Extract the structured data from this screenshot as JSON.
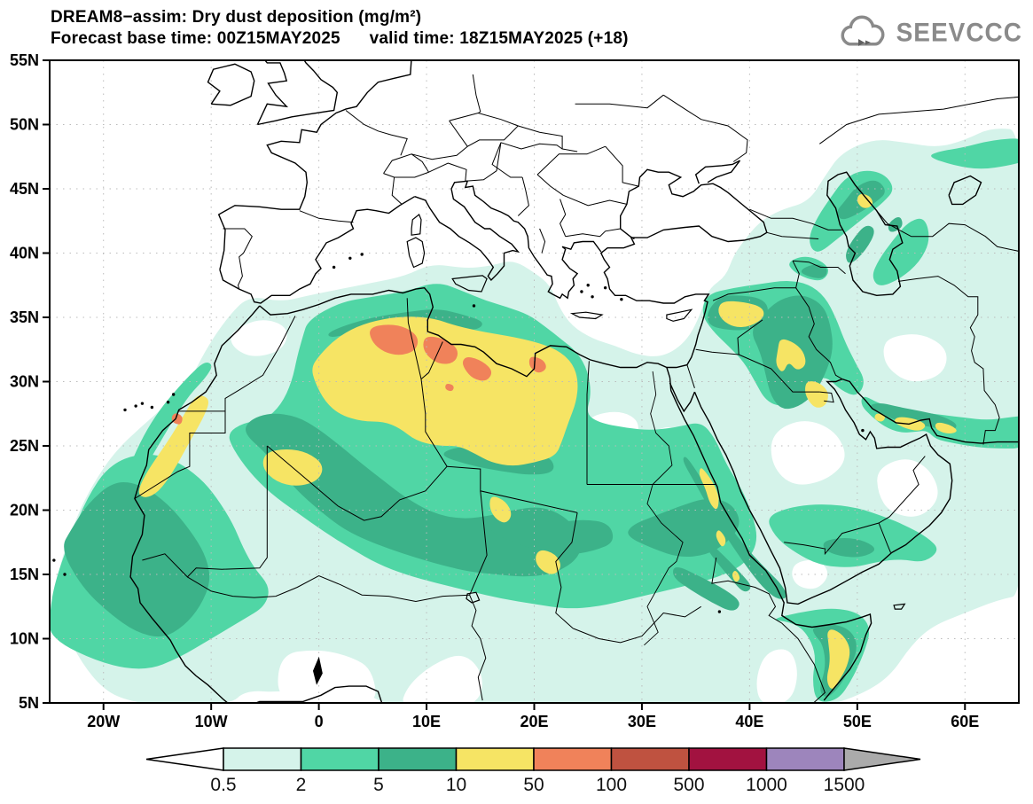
{
  "header": {
    "title_line1": "DREAM8−assim: Dry dust deposition (mg/m²)",
    "title_line2": "Forecast base time: 00Z15MAY2025      valid time: 18Z15MAY2025 (+18)"
  },
  "logo": {
    "text": "SEEVCCC",
    "color": "#8a8a8a",
    "icon": "cloud-arrow-icon"
  },
  "axes": {
    "x_ticks": [
      {
        "label": "20W",
        "lon": -20
      },
      {
        "label": "10W",
        "lon": -10
      },
      {
        "label": "0",
        "lon": 0
      },
      {
        "label": "10E",
        "lon": 10
      },
      {
        "label": "20E",
        "lon": 20
      },
      {
        "label": "30E",
        "lon": 30
      },
      {
        "label": "40E",
        "lon": 40
      },
      {
        "label": "50E",
        "lon": 50
      },
      {
        "label": "60E",
        "lon": 60
      }
    ],
    "y_ticks": [
      {
        "label": "5N",
        "lat": 5
      },
      {
        "label": "10N",
        "lat": 10
      },
      {
        "label": "15N",
        "lat": 15
      },
      {
        "label": "20N",
        "lat": 20
      },
      {
        "label": "25N",
        "lat": 25
      },
      {
        "label": "30N",
        "lat": 30
      },
      {
        "label": "35N",
        "lat": 35
      },
      {
        "label": "40N",
        "lat": 40
      },
      {
        "label": "45N",
        "lat": 45
      },
      {
        "label": "50N",
        "lat": 50
      },
      {
        "label": "55N",
        "lat": 55
      }
    ]
  },
  "colorbar": {
    "tick_labels": [
      "0.5",
      "2",
      "5",
      "10",
      "50",
      "100",
      "500",
      "1000",
      "1500"
    ],
    "segment_colors": [
      "#d5f3ea",
      "#50d6a5",
      "#3cb289",
      "#f6e464",
      "#f0825a",
      "#bf5240",
      "#a21240",
      "#9d85bc"
    ],
    "underflow_color": "#ffffff",
    "overflow_color": "#ababab"
  },
  "chart_data": {
    "type": "filled_contour_map",
    "title": "DREAM8−assim: Dry dust deposition (mg/m²)",
    "model": "DREAM8-assim",
    "variable": "Dry dust deposition",
    "units": "mg/m²",
    "forecast_base_time": "00Z15MAY2025",
    "valid_time": "18Z15MAY2025",
    "lead": "+18",
    "lon_range": [
      -25,
      65
    ],
    "lat_range": [
      5,
      55
    ],
    "grid": "dotted graticule, 10 deg lon x 5 deg lat",
    "contour_levels": [
      0.5,
      2,
      5,
      10,
      50,
      100,
      500,
      1000,
      1500
    ],
    "level_colors": [
      "#d5f3ea",
      "#50d6a5",
      "#3cb289",
      "#f6e464",
      "#f0825a",
      "#bf5240",
      "#a21240",
      "#9d85bc",
      "#ababab"
    ],
    "max_value_band": "50–100 mg/m² (no areas exceed 100 on this chart)",
    "hotspots": [
      {
        "region": "NE Algeria – Tunisia – NW Libya",
        "extent": "26–35N, 0–17E",
        "peak": "50–100"
      },
      {
        "region": "NE Libya (Benghazi/Cyrenaica)",
        "extent": "30–32N, 19–22E",
        "peak": "50–100"
      },
      {
        "region": "Western Sahara Atlantic coast",
        "extent": "21–29N, 17W–11W",
        "peak": "50–100"
      },
      {
        "region": "S Algeria / N Mali",
        "extent": "21–25N, 5W–1E",
        "peak": "10–50"
      },
      {
        "region": "West Africa & E Atlantic (Senegal–Mauritania)",
        "extent": "10–22N, 25W–10W",
        "peak": "5–10"
      },
      {
        "region": "Chad / Sudan dust belt",
        "extent": "13–21N, 13–40E",
        "peak": "10–50"
      },
      {
        "region": "Red Sea coast (Egypt/Sudan/Eritrea)",
        "extent": "14–24N, 35–40E",
        "peak": "10–50"
      },
      {
        "region": "Syria",
        "extent": "34–36.5N, 37–41.5E",
        "peak": "10–50"
      },
      {
        "region": "Mesopotamia (Iraq–Kuwait)",
        "extent": "28–34N, 41–48E",
        "peak": "10–50"
      },
      {
        "region": "S Iran coast / Strait of Hormuz",
        "extent": "25–28N, 52–60E",
        "peak": "10–50"
      },
      {
        "region": "NE Somalia coast",
        "extent": "6–11N, 47–50E",
        "peak": "10–50"
      },
      {
        "region": "NE Caspian shore (W Kazakhstan)",
        "extent": "43–45N, 50–52E",
        "peak": "10–50"
      }
    ]
  }
}
